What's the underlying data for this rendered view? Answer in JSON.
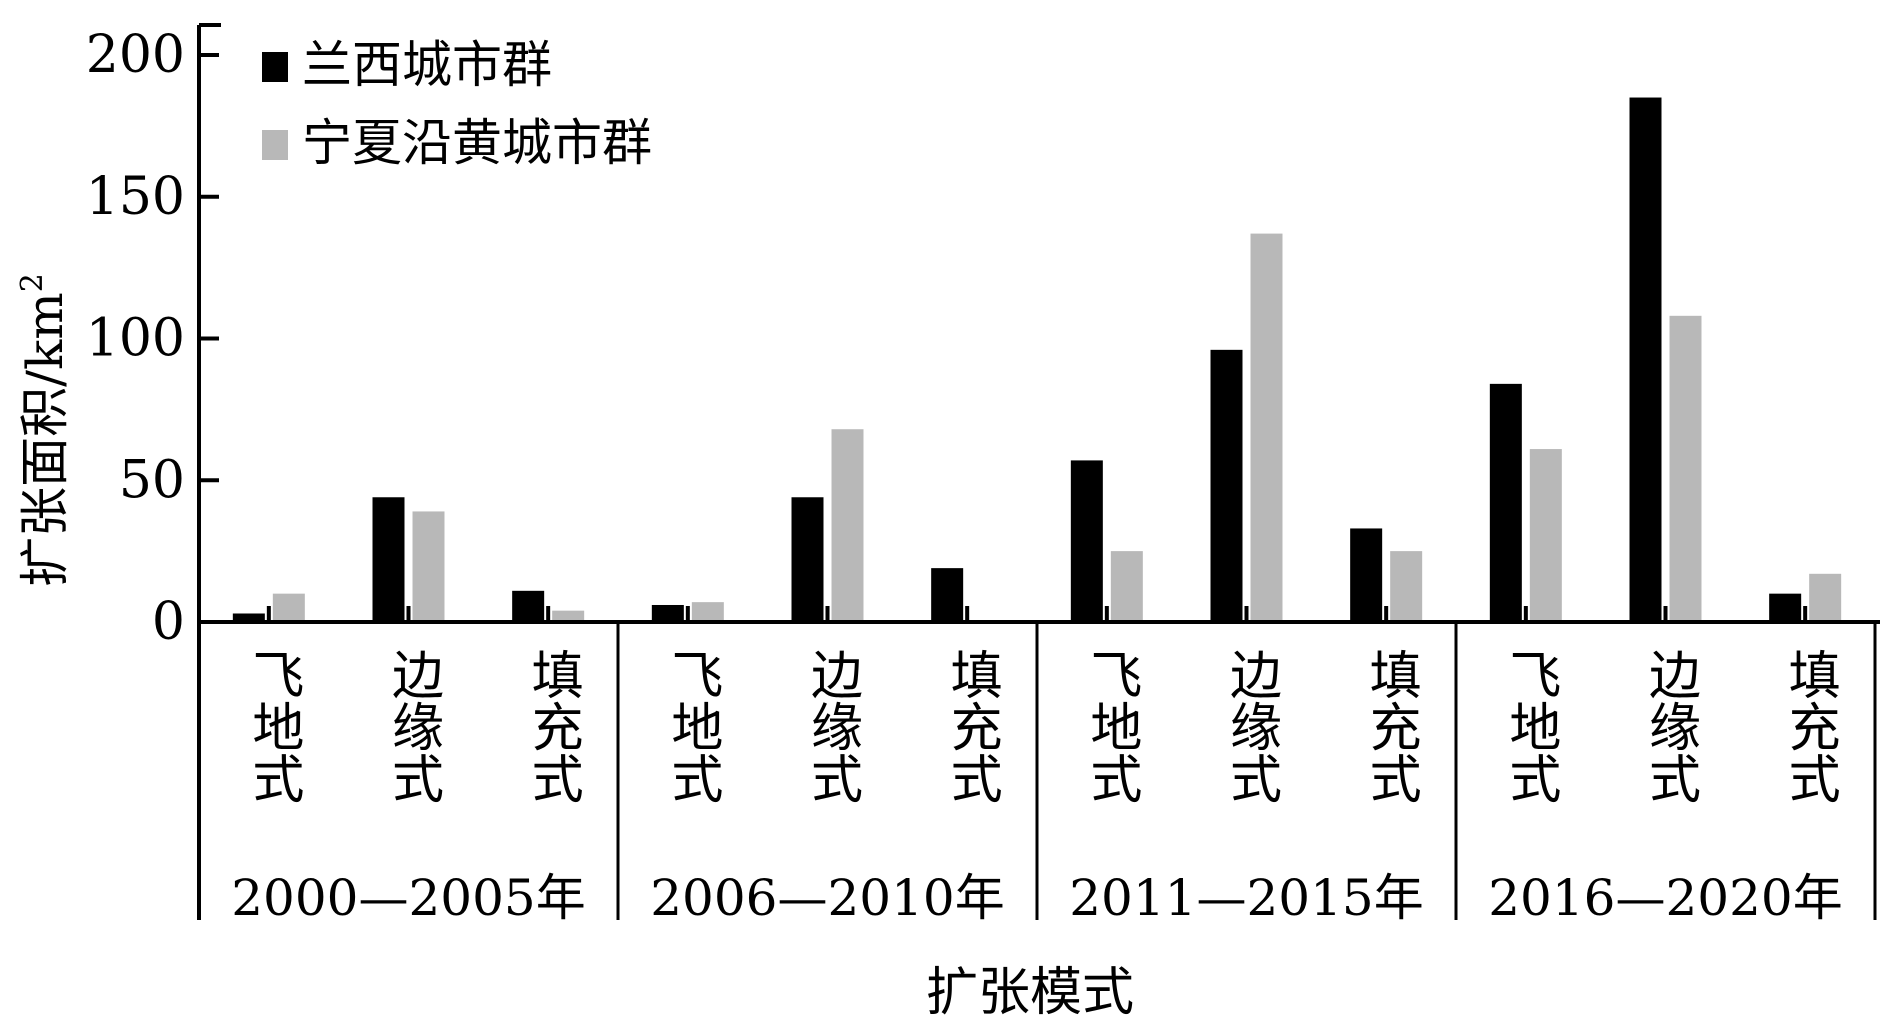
{
  "chart_data": {
    "type": "bar",
    "ylabel": "扩张面积/km",
    "ylabel_sup": "2",
    "xlabel": "扩张模式",
    "ylim": [
      0,
      200
    ],
    "yticks": [
      0,
      50,
      100,
      150,
      200
    ],
    "legend_position": "top-left",
    "groups": [
      {
        "label": "2000—2005年",
        "categories": [
          "飞地式",
          "边缘式",
          "填充式"
        ]
      },
      {
        "label": "2006—2010年",
        "categories": [
          "飞地式",
          "边缘式",
          "填充式"
        ]
      },
      {
        "label": "2011—2015年",
        "categories": [
          "飞地式",
          "边缘式",
          "填充式"
        ]
      },
      {
        "label": "2016—2020年",
        "categories": [
          "飞地式",
          "边缘式",
          "填充式"
        ]
      }
    ],
    "series": [
      {
        "name": "兰西城市群",
        "color": "#000000",
        "values": [
          3,
          44,
          11,
          6,
          44,
          19,
          57,
          96,
          33,
          84,
          185,
          10
        ]
      },
      {
        "name": "宁夏沿黄城市群",
        "color": "#b8b8b8",
        "values": [
          10,
          39,
          4,
          7,
          68,
          0,
          25,
          137,
          25,
          61,
          108,
          17
        ]
      }
    ]
  }
}
